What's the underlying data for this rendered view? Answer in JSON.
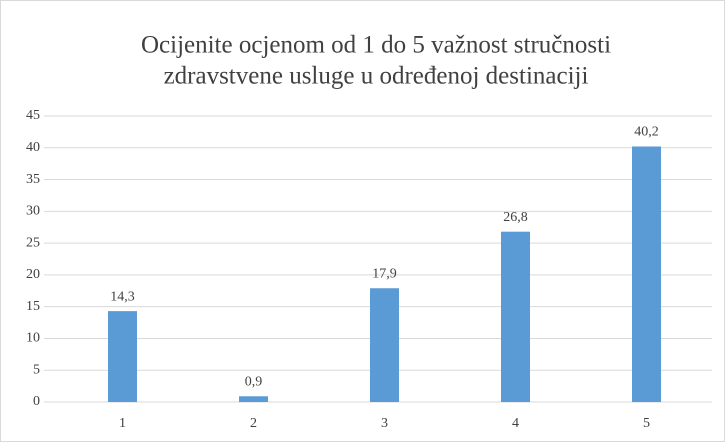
{
  "chart_data": {
    "type": "bar",
    "title": [
      "Ocijenite ocjenom od 1 do 5 važnost stručnosti",
      "zdravstvene usluge u određenoj destinaciji"
    ],
    "categories": [
      "1",
      "2",
      "3",
      "4",
      "5"
    ],
    "values": [
      14.3,
      0.9,
      17.9,
      26.8,
      40.2
    ],
    "value_labels": [
      "14,3",
      "0,9",
      "17,9",
      "26,8",
      "40,2"
    ],
    "color": "#5b9bd5",
    "ylim": [
      0,
      45
    ],
    "yticks": [
      0,
      5,
      10,
      15,
      20,
      25,
      30,
      35,
      40,
      45
    ],
    "grid": true
  }
}
